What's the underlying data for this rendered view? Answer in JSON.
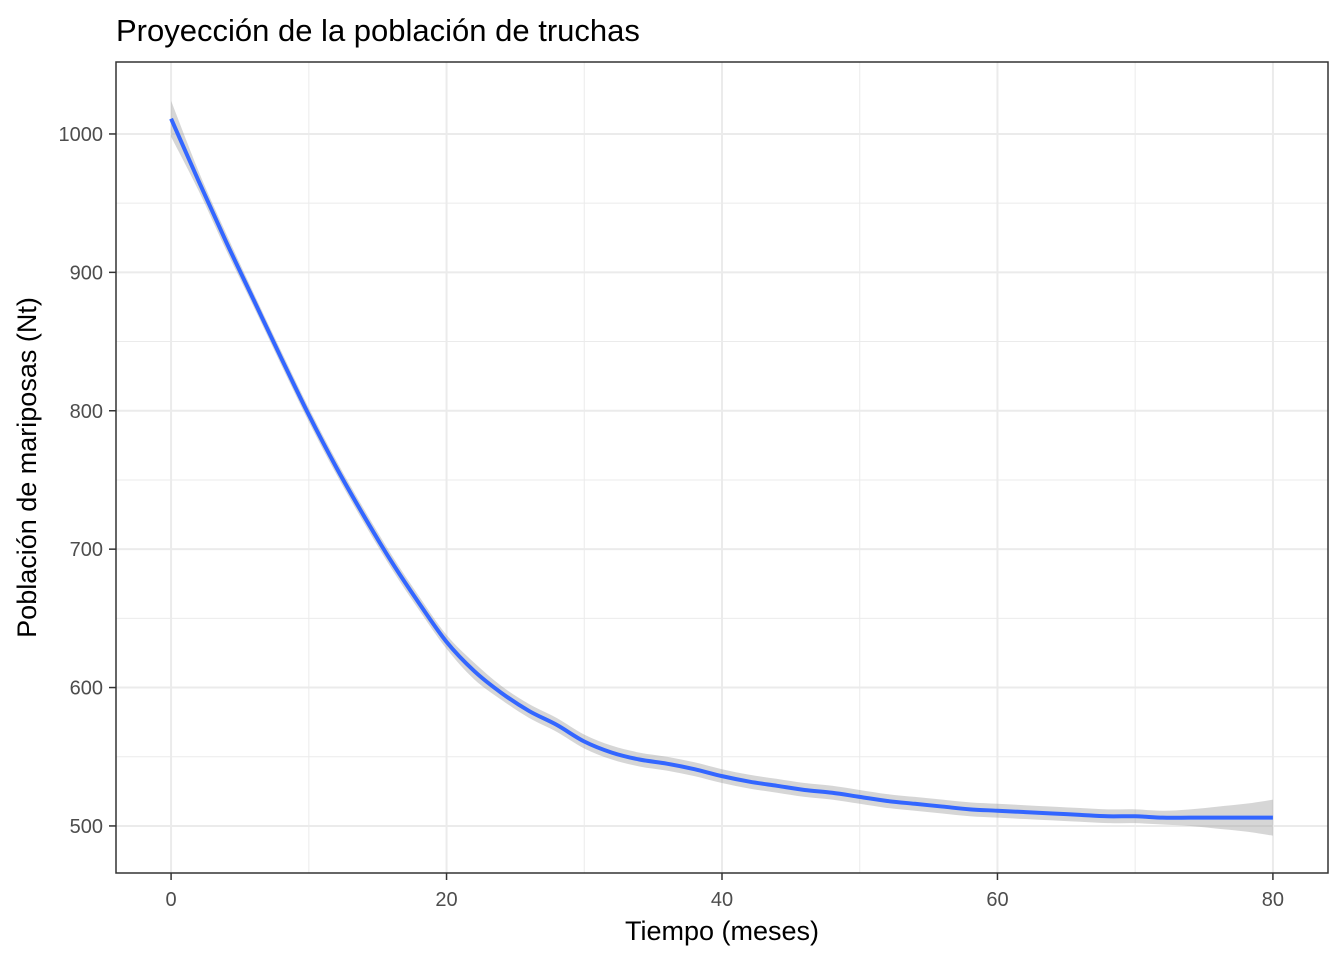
{
  "chart_data": {
    "type": "line",
    "title": "Proyección de la población de truchas",
    "xlabel": "Tiempo (meses)",
    "ylabel": "Población de mariposas (Nt)",
    "xlim": [
      -4,
      84
    ],
    "ylim": [
      466,
      1052
    ],
    "x_ticks": [
      0,
      20,
      40,
      60,
      80
    ],
    "y_ticks": [
      500,
      600,
      700,
      800,
      900,
      1000
    ],
    "x_tick_labels": [
      "0",
      "20",
      "40",
      "60",
      "80"
    ],
    "y_tick_labels": [
      "500",
      "600",
      "700",
      "800",
      "900",
      "1000"
    ],
    "grid": true,
    "series": [
      {
        "color": "#3366ff",
        "band_color": "#999999",
        "x": [
          0,
          2,
          4,
          6,
          8,
          10,
          12,
          14,
          16,
          18,
          20,
          22,
          24,
          26,
          28,
          30,
          32,
          34,
          36,
          38,
          40,
          42,
          44,
          46,
          48,
          50,
          52,
          54,
          56,
          58,
          60,
          62,
          64,
          66,
          68,
          70,
          72,
          74,
          76,
          78,
          80
        ],
        "y": [
          1011,
          966,
          922,
          880,
          838,
          797,
          759,
          724,
          691,
          661,
          633,
          612,
          596,
          583,
          573,
          561,
          553,
          548,
          545,
          541,
          536,
          532,
          529,
          526,
          524,
          521,
          518,
          516,
          514,
          512,
          511,
          510,
          509,
          508,
          507,
          507,
          506,
          506,
          506,
          506,
          506
        ],
        "band_halfwidth": [
          13,
          7,
          6,
          5,
          5,
          5,
          5,
          5,
          5,
          5,
          5,
          6,
          5,
          5,
          5,
          5,
          5,
          5,
          5,
          5,
          5,
          5,
          5,
          5,
          5,
          5,
          5,
          5,
          5,
          5,
          5,
          5,
          5,
          5,
          5,
          5,
          5,
          6,
          8,
          10,
          13
        ]
      }
    ]
  }
}
